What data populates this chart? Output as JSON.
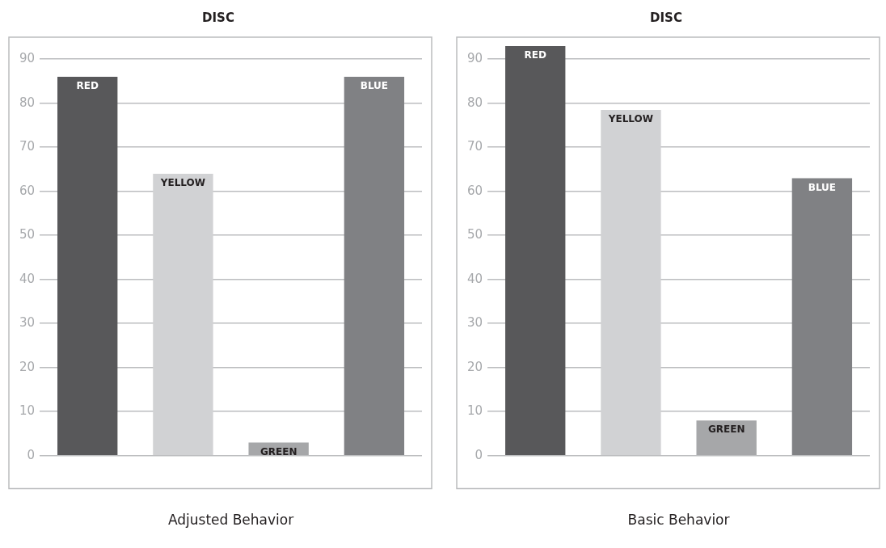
{
  "chart_data": [
    {
      "type": "bar",
      "title": "DISC",
      "xlabel": "Adjusted Behavior",
      "categories": [
        "RED",
        "YELLOW",
        "GREEN",
        "BLUE"
      ],
      "values": [
        86,
        64,
        3,
        86
      ],
      "colors": [
        "#58585a",
        "#d1d2d4",
        "#a6a7a9",
        "#808184"
      ],
      "ylim": [
        -7.5,
        95
      ],
      "yticks": [
        0,
        10,
        20,
        30,
        40,
        50,
        60,
        70,
        80,
        90
      ],
      "grid": "y",
      "tick_labels": "y"
    },
    {
      "type": "bar",
      "title": "DISC",
      "xlabel": "Basic Behavior",
      "categories": [
        "RED",
        "YELLOW",
        "GREEN",
        "BLUE"
      ],
      "values": [
        93,
        78.5,
        8,
        63
      ],
      "colors": [
        "#58585a",
        "#d1d2d4",
        "#a6a7a9",
        "#808184"
      ],
      "ylim": [
        -7.5,
        95
      ],
      "yticks": [
        0,
        10,
        20,
        30,
        40,
        50,
        60,
        70,
        80,
        90
      ],
      "grid": "y",
      "tick_labels": "y"
    }
  ]
}
